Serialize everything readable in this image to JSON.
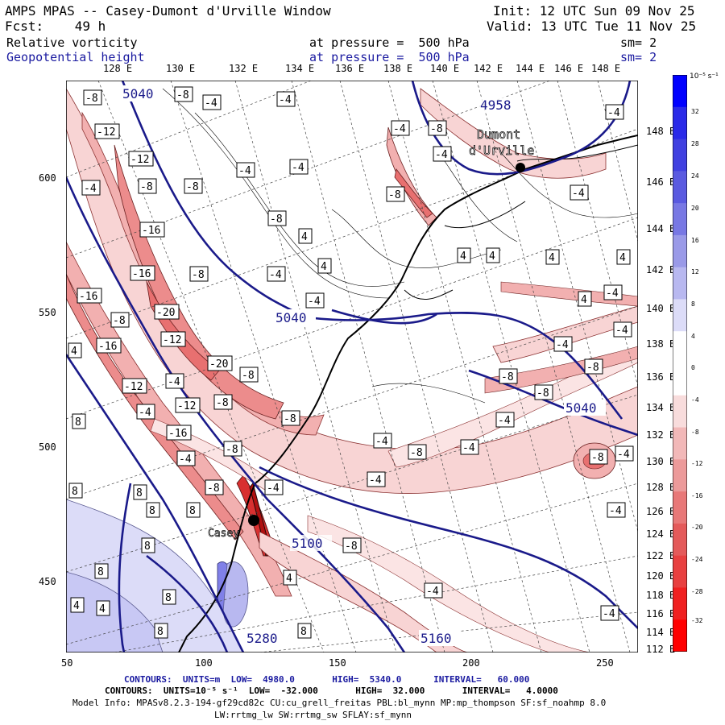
{
  "header": {
    "title": "AMPS MPAS -- Casey-Dumont d'Urville Window",
    "init": "Init: 12 UTC Sun 09 Nov 25",
    "fcst": "Fcst:    49 h",
    "valid": "Valid: 13 UTC Tue 11 Nov 25",
    "field1_name": "Relative vorticity",
    "field1_level": "at pressure =  500 hPa",
    "field1_sm": "sm= 2",
    "field2_name": "Geopotential height",
    "field2_level": "at pressure =  500 hPa",
    "field2_sm": "sm= 2"
  },
  "axes": {
    "top_labels": [
      "128 E",
      "130 E",
      "132 E",
      "134 E",
      "136 E",
      "138 E",
      "140 E",
      "142 E",
      "144 E",
      "146 E",
      "148 E"
    ],
    "right_labels": [
      "148 E",
      "146 E",
      "144 E",
      "142 E",
      "140 E",
      "138 E",
      "136 E",
      "134 E",
      "132 E",
      "130 E",
      "128 E",
      "126 E",
      "124 E",
      "122 E",
      "120 E",
      "118 E",
      "116 E",
      "114 E",
      "112 E"
    ],
    "bottom_labels": [
      "50",
      "100",
      "150",
      "200",
      "250"
    ],
    "left_labels": [
      "600",
      "550",
      "500",
      "450"
    ]
  },
  "colorbar": {
    "unit": "10⁻⁵ s⁻¹",
    "ticks": [
      "32",
      "28",
      "24",
      "20",
      "16",
      "12",
      "8",
      "4",
      "0",
      "-4",
      "-8",
      "-12",
      "-16",
      "-20",
      "-24",
      "-28",
      "-32"
    ],
    "colors": [
      "#0000ff",
      "#2a2ae8",
      "#4040e0",
      "#5a5ae0",
      "#7878e4",
      "#9a9ae8",
      "#b8b8f0",
      "#dcdcf8",
      "#ffffff",
      "#ffffff",
      "#f8dcdc",
      "#f2b8b8",
      "#ec9a9a",
      "#e87878",
      "#e45a5a",
      "#e84040",
      "#f02020",
      "#ff0000"
    ]
  },
  "map": {
    "height_labels": [
      "5040",
      "4958",
      "5040",
      "5040",
      "5100",
      "5160",
      "5280"
    ],
    "station_labels": [
      "Dumont",
      "d'Urville",
      "Casey"
    ],
    "vort_labels": [
      "-8",
      "-12",
      "-16",
      "-20",
      "-4",
      "4",
      "8"
    ]
  },
  "footer": {
    "line1": "CONTOURS:  UNITS=m  LOW=  4980.0       HIGH=  5340.0      INTERVAL=   60.000",
    "line2": "CONTOURS:  UNITS=10⁻⁵ s⁻¹  LOW=  -32.000       HIGH=  32.000       INTERVAL=   4.0000",
    "line3": "Model Info: MPASv8.2.3-194-gf29cd82c CU:cu_grell_freitas PBL:bl_mynn MP:mp_thompson SF:sf_noahmp 8.0",
    "line4": "LW:rrtmg_lw SW:rrtmg_sw SFLAY:sf_mynn"
  }
}
